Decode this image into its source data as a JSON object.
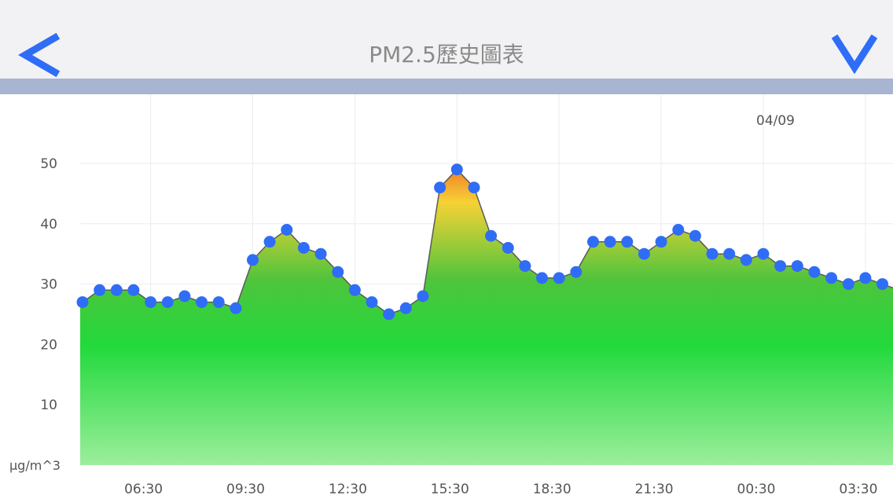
{
  "header": {
    "title": "PM2.5歷史圖表",
    "back_icon": "chevron-left-icon",
    "menu_icon": "chevron-down-icon",
    "accent_color": "#2f6df6"
  },
  "chart_data": {
    "type": "area",
    "title": "",
    "date_label": "04/09",
    "unit_label": "μg/m^3",
    "ylim": [
      0,
      50
    ],
    "yticks": [
      "10",
      "20",
      "30",
      "40",
      "50"
    ],
    "xticks": [
      "06:30",
      "09:30",
      "12:30",
      "15:30",
      "18:30",
      "21:30",
      "00:30",
      "03:30"
    ],
    "grid": true,
    "interval_minutes": 30,
    "start_time": "04:30",
    "series": [
      {
        "values": [
          27,
          29,
          29,
          29,
          27,
          27,
          28,
          27,
          27,
          26,
          34,
          37,
          39,
          36,
          35,
          32,
          29,
          27,
          25,
          26,
          28,
          46,
          49,
          46,
          38,
          36,
          33,
          31,
          31,
          32,
          37,
          37,
          37,
          35,
          37,
          39,
          38,
          35,
          35,
          34,
          35,
          33,
          33,
          32,
          31,
          30,
          31,
          30,
          29
        ]
      }
    ],
    "colors": {
      "high": "#f07a28",
      "mid": "#f6d235",
      "low": "#22d93c",
      "bottom": "#9cee9c",
      "marker": "#2f6df6"
    }
  }
}
